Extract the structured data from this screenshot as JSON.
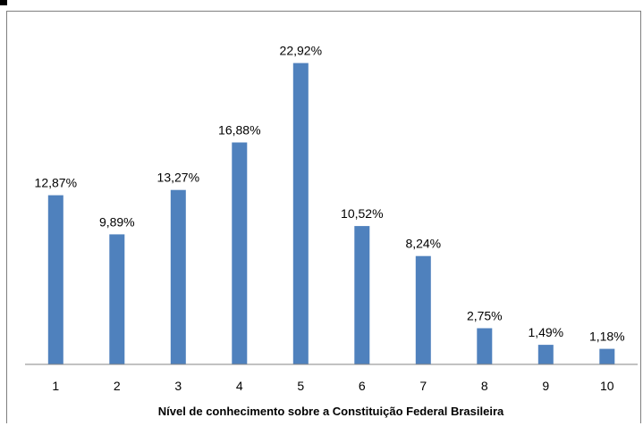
{
  "chart_data": {
    "type": "bar",
    "categories": [
      "1",
      "2",
      "3",
      "4",
      "5",
      "6",
      "7",
      "8",
      "9",
      "10"
    ],
    "values": [
      12.87,
      9.89,
      13.27,
      16.88,
      22.92,
      10.52,
      8.24,
      2.75,
      1.49,
      1.18
    ],
    "data_labels": [
      "12,87%",
      "9,89%",
      "13,27%",
      "16,88%",
      "22,92%",
      "10,52%",
      "8,24%",
      "2,75%",
      "1,49%",
      "1,18%"
    ],
    "title": "",
    "xlabel": "Nível de conhecimento sobre a Constituição Federal Brasileira",
    "ylabel": "",
    "ylim": [
      0,
      25
    ],
    "grid": false,
    "legend": "none",
    "colors": {
      "bar": "#4f81bd",
      "axis": "#868686",
      "border": "#7f7f7f"
    }
  }
}
